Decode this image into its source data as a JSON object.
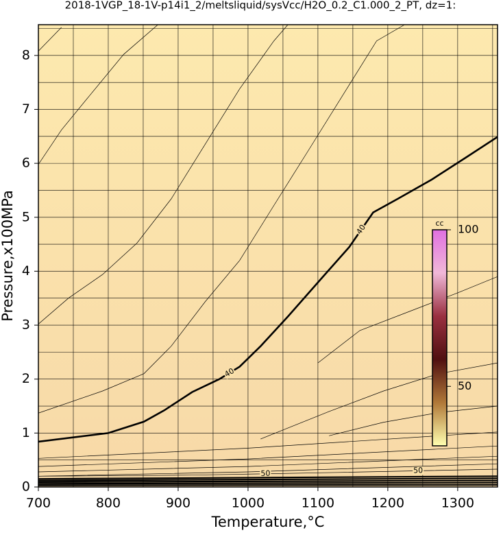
{
  "chart_data": {
    "type": "contour",
    "title": "2018-1VGP_18-1V-p14i1_2/meltsliquid/sysVcc/H2O_0.2_C1.000_2_PT, dz=1:",
    "xlabel": "Temperature,°C",
    "ylabel": "Pressure,x100MPa",
    "xlim": [
      700,
      1357
    ],
    "ylim": [
      0,
      8.57
    ],
    "xticks": [
      700,
      800,
      900,
      1000,
      1100,
      1200,
      1300
    ],
    "yticks": [
      0,
      1,
      2,
      3,
      4,
      5,
      6,
      7,
      8
    ],
    "grid": true,
    "grid_spacing": {
      "x": 50,
      "y": 0.5
    },
    "background": [
      "#fde9ae",
      "#f7d9a8"
    ],
    "contours": [
      {
        "level": 40,
        "bold": true,
        "x": [
          700,
          800,
          851,
          880,
          920,
          959,
          988,
          1018,
          1057,
          1106,
          1145,
          1179,
          1214,
          1263,
          1312,
          1357
        ],
        "y": [
          0.84,
          1.0,
          1.21,
          1.42,
          1.76,
          2.0,
          2.23,
          2.61,
          3.16,
          3.88,
          4.45,
          5.09,
          5.34,
          5.7,
          6.11,
          6.49
        ]
      },
      {
        "x": [
          700,
          733
        ],
        "y": [
          8.08,
          8.52
        ]
      },
      {
        "x": [
          700,
          733,
          773,
          822,
          871
        ],
        "y": [
          5.98,
          6.62,
          7.25,
          8.02,
          8.57
        ]
      },
      {
        "x": [
          700,
          743,
          792,
          841,
          890,
          939,
          988,
          1037,
          1057
        ],
        "y": [
          3.02,
          3.5,
          3.94,
          4.52,
          5.34,
          6.36,
          7.38,
          8.27,
          8.57
        ]
      },
      {
        "x": [
          700,
          792,
          851,
          890,
          939,
          988,
          1037,
          1086,
          1135,
          1184,
          1224
        ],
        "y": [
          1.37,
          1.78,
          2.1,
          2.61,
          3.44,
          4.2,
          5.22,
          6.23,
          7.25,
          8.27,
          8.57
        ]
      },
      {
        "x": [
          1100,
          1160,
          1240,
          1300,
          1357
        ],
        "y": [
          2.3,
          2.9,
          3.3,
          3.6,
          3.9
        ]
      },
      {
        "x": [
          1018,
          1116,
          1194,
          1273,
          1357
        ],
        "y": [
          0.89,
          1.4,
          1.78,
          2.1,
          2.3
        ]
      },
      {
        "x": [
          1116,
          1194,
          1273,
          1357
        ],
        "y": [
          0.95,
          1.2,
          1.38,
          1.5
        ]
      },
      {
        "x": [
          700,
          1000,
          1357
        ],
        "y": [
          0.53,
          0.72,
          1.02
        ]
      },
      {
        "x": [
          700,
          1000,
          1357
        ],
        "y": [
          0.38,
          0.52,
          0.76
        ]
      },
      {
        "x": [
          700,
          1000,
          1357
        ],
        "y": [
          0.28,
          0.38,
          0.57
        ]
      },
      {
        "x": [
          700,
          1000,
          1357
        ],
        "y": [
          0.2,
          0.28,
          0.43
        ]
      },
      {
        "level": 50,
        "x": [
          700,
          920,
          1130,
          1357
        ],
        "y": [
          0.2,
          0.22,
          0.27,
          0.33
        ]
      },
      {
        "x": [
          700,
          1357
        ],
        "y": [
          0.15,
          0.2
        ]
      },
      {
        "x": [
          700,
          1357
        ],
        "y": [
          0.12,
          0.16
        ]
      },
      {
        "x": [
          700,
          1357
        ],
        "y": [
          0.09,
          0.12
        ]
      },
      {
        "x": [
          700,
          1357
        ],
        "y": [
          0.06,
          0.08
        ]
      },
      {
        "x": [
          700,
          1357
        ],
        "y": [
          0.03,
          0.04
        ]
      }
    ],
    "colorbar": {
      "label": "cc",
      "zlim": [
        31,
        100
      ],
      "ticks": [
        50,
        100
      ],
      "colors": [
        "#ffffb0",
        "#b07838",
        "#501010",
        "#9a3040",
        "#f0b8d8",
        "#e070e0"
      ]
    }
  }
}
